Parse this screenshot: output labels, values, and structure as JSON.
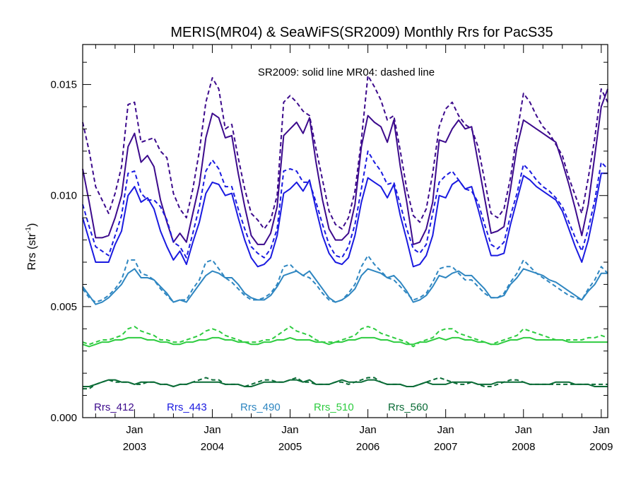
{
  "chart_data": {
    "type": "line",
    "title": "MERIS(MR04) & SeaWiFS(SR2009) Monthly Rrs for PacS35",
    "ylabel": "Rrs (str",
    "ylabel_sup": "-1",
    "ylabel_end": ")",
    "xlabel": "",
    "ylim": [
      0.0,
      0.0168
    ],
    "xlim": [
      "2002-05",
      "2009-02"
    ],
    "grid": false,
    "yticks": [
      "0.000",
      "0.005",
      "0.010",
      "0.015"
    ],
    "ytick_values": [
      0.0,
      0.005,
      0.01,
      0.015
    ],
    "xticks": [
      {
        "month": "Jan",
        "year": "2003",
        "date": "2003-01"
      },
      {
        "month": "Jan",
        "year": "2004",
        "date": "2004-01"
      },
      {
        "month": "Jan",
        "year": "2005",
        "date": "2005-01"
      },
      {
        "month": "Jan",
        "year": "2006",
        "date": "2006-01"
      },
      {
        "month": "Jan",
        "year": "2007",
        "date": "2007-01"
      },
      {
        "month": "Jan",
        "year": "2008",
        "date": "2008-01"
      },
      {
        "month": "Jan",
        "year": "2009",
        "date": "2009-01"
      }
    ],
    "annotation": "SR2009: solid line   MR04: dashed line",
    "legend_position": "bottom",
    "x": [
      "2002-05",
      "2002-06",
      "2002-07",
      "2002-08",
      "2002-09",
      "2002-10",
      "2002-11",
      "2002-12",
      "2003-01",
      "2003-02",
      "2003-03",
      "2003-04",
      "2003-05",
      "2003-06",
      "2003-07",
      "2003-08",
      "2003-09",
      "2003-10",
      "2003-11",
      "2003-12",
      "2004-01",
      "2004-02",
      "2004-03",
      "2004-04",
      "2004-05",
      "2004-06",
      "2004-07",
      "2004-08",
      "2004-09",
      "2004-10",
      "2004-11",
      "2004-12",
      "2005-01",
      "2005-02",
      "2005-03",
      "2005-04",
      "2005-05",
      "2005-06",
      "2005-07",
      "2005-08",
      "2005-09",
      "2005-10",
      "2005-11",
      "2005-12",
      "2006-01",
      "2006-02",
      "2006-03",
      "2006-04",
      "2006-05",
      "2006-06",
      "2006-07",
      "2006-08",
      "2006-09",
      "2006-10",
      "2006-11",
      "2006-12",
      "2007-01",
      "2007-02",
      "2007-03",
      "2007-04",
      "2007-05",
      "2007-06",
      "2007-07",
      "2007-08",
      "2007-09",
      "2007-10",
      "2007-11",
      "2007-12",
      "2008-01",
      "2008-02",
      "2008-03",
      "2008-04",
      "2008-05",
      "2008-06",
      "2008-07",
      "2008-08",
      "2008-09",
      "2008-10",
      "2008-11",
      "2008-12",
      "2009-01",
      "2009-02"
    ],
    "series": [
      {
        "name": "Rrs_412",
        "color": "#3c0a8c",
        "sr2009": [
          0.0112,
          0.0097,
          0.0081,
          0.0081,
          0.0082,
          0.009,
          0.01,
          0.0122,
          0.0128,
          0.0115,
          0.0118,
          0.0113,
          0.0098,
          0.0088,
          0.0079,
          0.0083,
          0.0079,
          0.0092,
          0.0105,
          0.0126,
          0.0137,
          0.0135,
          0.0126,
          0.0127,
          0.011,
          0.0095,
          0.0082,
          0.0078,
          0.0078,
          0.0083,
          0.0095,
          0.0127,
          0.013,
          0.0133,
          0.0128,
          0.0135,
          0.0115,
          0.0098,
          0.0085,
          0.008,
          0.008,
          0.0083,
          0.0096,
          0.0122,
          0.0136,
          0.0133,
          0.0131,
          0.0124,
          0.0134,
          0.0113,
          0.0097,
          0.0078,
          0.0079,
          0.0085,
          0.0097,
          0.0125,
          0.0124,
          0.013,
          0.0134,
          0.013,
          0.0131,
          0.0115,
          0.0099,
          0.0083,
          0.0084,
          0.0086,
          0.0103,
          0.0122,
          0.0134,
          0.0132,
          0.013,
          0.0128,
          0.0126,
          0.0124,
          0.0115,
          0.0105,
          0.0094,
          0.0082,
          0.0096,
          0.0118,
          0.014,
          0.0148
        ],
        "mr04": [
          0.0133,
          0.012,
          0.0104,
          0.0098,
          0.0092,
          0.0101,
          0.0113,
          0.0141,
          0.0142,
          0.0124,
          0.0125,
          0.0126,
          0.012,
          0.0117,
          0.0101,
          0.0094,
          0.009,
          0.0103,
          0.012,
          0.0142,
          0.0153,
          0.0148,
          0.013,
          0.0132,
          0.0117,
          0.0103,
          0.0092,
          0.0089,
          0.0085,
          0.0089,
          0.01,
          0.0142,
          0.0145,
          0.0142,
          0.0138,
          0.0136,
          0.0121,
          0.0107,
          0.0093,
          0.0087,
          0.0085,
          0.009,
          0.0102,
          0.0125,
          0.0154,
          0.0149,
          0.0143,
          0.0134,
          0.0136,
          0.012,
          0.0103,
          0.0091,
          0.0088,
          0.0094,
          0.011,
          0.0131,
          0.0139,
          0.0142,
          0.0136,
          0.0132,
          0.013,
          0.0122,
          0.0107,
          0.0092,
          0.009,
          0.0094,
          0.0108,
          0.0128,
          0.0146,
          0.0142,
          0.0136,
          0.0131,
          0.0128,
          0.0123,
          0.0118,
          0.0108,
          0.01,
          0.0092,
          0.0108,
          0.0126,
          0.0148,
          0.0142
        ]
      },
      {
        "name": "Rrs_443",
        "color": "#1a1ae0",
        "sr2009": [
          0.009,
          0.008,
          0.007,
          0.007,
          0.007,
          0.0078,
          0.0084,
          0.01,
          0.0104,
          0.0097,
          0.0099,
          0.0094,
          0.0084,
          0.0077,
          0.0071,
          0.0075,
          0.0069,
          0.0079,
          0.0088,
          0.0101,
          0.0106,
          0.0105,
          0.01,
          0.0101,
          0.009,
          0.008,
          0.0072,
          0.0068,
          0.0069,
          0.0072,
          0.0082,
          0.0101,
          0.0103,
          0.0106,
          0.0102,
          0.0107,
          0.0094,
          0.0082,
          0.0074,
          0.007,
          0.0069,
          0.0072,
          0.0082,
          0.0097,
          0.0108,
          0.0106,
          0.0104,
          0.0099,
          0.0105,
          0.0091,
          0.008,
          0.0068,
          0.0069,
          0.0073,
          0.0082,
          0.01,
          0.0099,
          0.0105,
          0.0107,
          0.0103,
          0.0104,
          0.0094,
          0.0083,
          0.0073,
          0.0073,
          0.0074,
          0.0087,
          0.0098,
          0.0109,
          0.0107,
          0.0104,
          0.0102,
          0.01,
          0.0098,
          0.0093,
          0.0085,
          0.0077,
          0.007,
          0.008,
          0.0094,
          0.011,
          0.011
        ],
        "mr04": [
          0.0096,
          0.0086,
          0.0077,
          0.0075,
          0.0073,
          0.0082,
          0.0091,
          0.011,
          0.0111,
          0.0101,
          0.0098,
          0.0098,
          0.0095,
          0.0089,
          0.0079,
          0.0077,
          0.0072,
          0.0083,
          0.0095,
          0.0111,
          0.0116,
          0.0112,
          0.0104,
          0.0104,
          0.0094,
          0.0085,
          0.0077,
          0.0074,
          0.0072,
          0.0076,
          0.0085,
          0.0111,
          0.0112,
          0.0111,
          0.0106,
          0.0106,
          0.0097,
          0.0087,
          0.0078,
          0.0073,
          0.0072,
          0.0077,
          0.0087,
          0.0103,
          0.012,
          0.0115,
          0.0111,
          0.0105,
          0.0106,
          0.0096,
          0.0085,
          0.0076,
          0.0074,
          0.0078,
          0.0092,
          0.0106,
          0.0109,
          0.0111,
          0.0107,
          0.0103,
          0.0102,
          0.0097,
          0.0087,
          0.0078,
          0.0076,
          0.0079,
          0.0091,
          0.0101,
          0.0114,
          0.0111,
          0.0107,
          0.0104,
          0.0102,
          0.0099,
          0.0095,
          0.0088,
          0.0081,
          0.0075,
          0.0085,
          0.0098,
          0.0115,
          0.0112
        ]
      },
      {
        "name": "Rrs_490",
        "color": "#2e86c1",
        "sr2009": [
          0.0059,
          0.0055,
          0.0051,
          0.0052,
          0.0054,
          0.0057,
          0.006,
          0.0065,
          0.0067,
          0.0063,
          0.0063,
          0.0062,
          0.0059,
          0.0056,
          0.0052,
          0.0053,
          0.0052,
          0.0056,
          0.006,
          0.0064,
          0.0066,
          0.0065,
          0.0063,
          0.0063,
          0.006,
          0.0056,
          0.0054,
          0.0053,
          0.0053,
          0.0055,
          0.0059,
          0.0064,
          0.0065,
          0.0066,
          0.0064,
          0.0066,
          0.0062,
          0.0058,
          0.0054,
          0.0052,
          0.0053,
          0.0055,
          0.0058,
          0.0064,
          0.0067,
          0.0066,
          0.0065,
          0.0063,
          0.0064,
          0.0061,
          0.0057,
          0.0052,
          0.0053,
          0.0055,
          0.0059,
          0.0064,
          0.0063,
          0.0065,
          0.0066,
          0.0064,
          0.0064,
          0.0061,
          0.0058,
          0.0054,
          0.0054,
          0.0055,
          0.006,
          0.0063,
          0.0067,
          0.0066,
          0.0065,
          0.0064,
          0.0062,
          0.0061,
          0.0059,
          0.0057,
          0.0055,
          0.0053,
          0.0057,
          0.006,
          0.0065,
          0.0065
        ],
        "mr04": [
          0.0058,
          0.0054,
          0.0052,
          0.0053,
          0.0055,
          0.0058,
          0.0062,
          0.0071,
          0.0071,
          0.0065,
          0.0064,
          0.0062,
          0.0058,
          0.0055,
          0.0052,
          0.0053,
          0.0053,
          0.0058,
          0.0062,
          0.007,
          0.0071,
          0.0067,
          0.0063,
          0.0061,
          0.0058,
          0.0055,
          0.0053,
          0.0053,
          0.0054,
          0.0056,
          0.006,
          0.0068,
          0.0069,
          0.0066,
          0.0064,
          0.0063,
          0.006,
          0.0056,
          0.0053,
          0.0052,
          0.0053,
          0.0056,
          0.006,
          0.0068,
          0.0073,
          0.0069,
          0.0066,
          0.0063,
          0.0062,
          0.0059,
          0.0056,
          0.0053,
          0.0054,
          0.0056,
          0.0061,
          0.0067,
          0.0068,
          0.0068,
          0.0065,
          0.0062,
          0.0062,
          0.0059,
          0.0056,
          0.0054,
          0.0054,
          0.0056,
          0.0061,
          0.0065,
          0.0071,
          0.0068,
          0.0065,
          0.0063,
          0.0061,
          0.0059,
          0.0057,
          0.0055,
          0.0054,
          0.0053,
          0.0058,
          0.0062,
          0.0068,
          0.0065
        ]
      },
      {
        "name": "Rrs_510",
        "color": "#2ecc40",
        "sr2009": [
          0.0033,
          0.0032,
          0.0033,
          0.0034,
          0.0034,
          0.0035,
          0.0035,
          0.0036,
          0.0036,
          0.0036,
          0.0035,
          0.0035,
          0.0034,
          0.0034,
          0.0033,
          0.0033,
          0.0034,
          0.0034,
          0.0035,
          0.0035,
          0.0036,
          0.0036,
          0.0035,
          0.0035,
          0.0034,
          0.0034,
          0.0033,
          0.0033,
          0.0034,
          0.0034,
          0.0035,
          0.0035,
          0.0036,
          0.0035,
          0.0035,
          0.0035,
          0.0034,
          0.0034,
          0.0033,
          0.0034,
          0.0034,
          0.0035,
          0.0035,
          0.0036,
          0.0036,
          0.0036,
          0.0035,
          0.0035,
          0.0034,
          0.0034,
          0.0033,
          0.0033,
          0.0034,
          0.0034,
          0.0035,
          0.0036,
          0.0035,
          0.0036,
          0.0036,
          0.0035,
          0.0035,
          0.0034,
          0.0034,
          0.0033,
          0.0033,
          0.0034,
          0.0035,
          0.0035,
          0.0036,
          0.0036,
          0.0035,
          0.0035,
          0.0035,
          0.0035,
          0.0035,
          0.0034,
          0.0034,
          0.0034,
          0.0034,
          0.0034,
          0.0034,
          0.0034
        ],
        "mr04": [
          0.0034,
          0.0033,
          0.0034,
          0.0035,
          0.0035,
          0.0036,
          0.0037,
          0.004,
          0.0041,
          0.0039,
          0.0038,
          0.0037,
          0.0035,
          0.0035,
          0.0034,
          0.0034,
          0.0035,
          0.0036,
          0.0037,
          0.0039,
          0.004,
          0.0039,
          0.0037,
          0.0036,
          0.0035,
          0.0034,
          0.0034,
          0.0034,
          0.0035,
          0.0035,
          0.0037,
          0.0039,
          0.0041,
          0.0039,
          0.0038,
          0.0037,
          0.0035,
          0.0034,
          0.0034,
          0.0034,
          0.0035,
          0.0036,
          0.0037,
          0.004,
          0.0041,
          0.004,
          0.0038,
          0.0037,
          0.0036,
          0.0035,
          0.0034,
          0.0032,
          0.0034,
          0.0035,
          0.0036,
          0.0039,
          0.004,
          0.004,
          0.0038,
          0.0037,
          0.0036,
          0.0035,
          0.0034,
          0.0033,
          0.0034,
          0.0035,
          0.0036,
          0.0037,
          0.004,
          0.0039,
          0.0038,
          0.0037,
          0.0036,
          0.0035,
          0.0035,
          0.0035,
          0.0035,
          0.0035,
          0.0036,
          0.0036,
          0.0037,
          0.0036
        ]
      },
      {
        "name": "Rrs_560",
        "color": "#0a6b36",
        "sr2009": [
          0.0014,
          0.0014,
          0.0015,
          0.0016,
          0.0017,
          0.0017,
          0.0016,
          0.0016,
          0.0015,
          0.0016,
          0.0016,
          0.0016,
          0.0015,
          0.0015,
          0.0014,
          0.0015,
          0.0015,
          0.0016,
          0.0016,
          0.0016,
          0.0016,
          0.0016,
          0.0015,
          0.0015,
          0.0015,
          0.0014,
          0.0014,
          0.0015,
          0.0016,
          0.0016,
          0.0016,
          0.0016,
          0.0017,
          0.0017,
          0.0016,
          0.0017,
          0.0015,
          0.0015,
          0.0015,
          0.0016,
          0.0017,
          0.0016,
          0.0016,
          0.0016,
          0.0017,
          0.0017,
          0.0016,
          0.0015,
          0.0015,
          0.0015,
          0.0014,
          0.0014,
          0.0015,
          0.0016,
          0.0015,
          0.0015,
          0.0015,
          0.0016,
          0.0016,
          0.0016,
          0.0016,
          0.0015,
          0.0015,
          0.0015,
          0.0016,
          0.0016,
          0.0016,
          0.0016,
          0.0016,
          0.0015,
          0.0015,
          0.0015,
          0.0015,
          0.0016,
          0.0016,
          0.0016,
          0.0015,
          0.0015,
          0.0015,
          0.0014,
          0.0014,
          0.0014
        ],
        "mr04": [
          0.0013,
          0.0013,
          0.0015,
          0.0016,
          0.0017,
          0.0016,
          0.0016,
          0.0016,
          0.0015,
          0.0015,
          0.0016,
          0.0016,
          0.0015,
          0.0015,
          0.0014,
          0.0015,
          0.0015,
          0.0016,
          0.0017,
          0.0018,
          0.0017,
          0.0017,
          0.0015,
          0.0015,
          0.0015,
          0.0014,
          0.0015,
          0.0016,
          0.0017,
          0.0017,
          0.0016,
          0.0016,
          0.0017,
          0.0018,
          0.0016,
          0.0016,
          0.0015,
          0.0015,
          0.0015,
          0.0016,
          0.0016,
          0.0015,
          0.0016,
          0.0017,
          0.0018,
          0.0018,
          0.0016,
          0.0015,
          0.0015,
          0.0015,
          0.0014,
          0.0014,
          0.0015,
          0.0016,
          0.0017,
          0.0018,
          0.0017,
          0.0016,
          0.0015,
          0.0015,
          0.0016,
          0.0015,
          0.0014,
          0.0014,
          0.0015,
          0.0016,
          0.0017,
          0.0017,
          0.0016,
          0.0015,
          0.0015,
          0.0015,
          0.0015,
          0.0015,
          0.0015,
          0.0015,
          0.0015,
          0.0015,
          0.0015,
          0.0015,
          0.0015,
          0.0015
        ]
      }
    ]
  }
}
